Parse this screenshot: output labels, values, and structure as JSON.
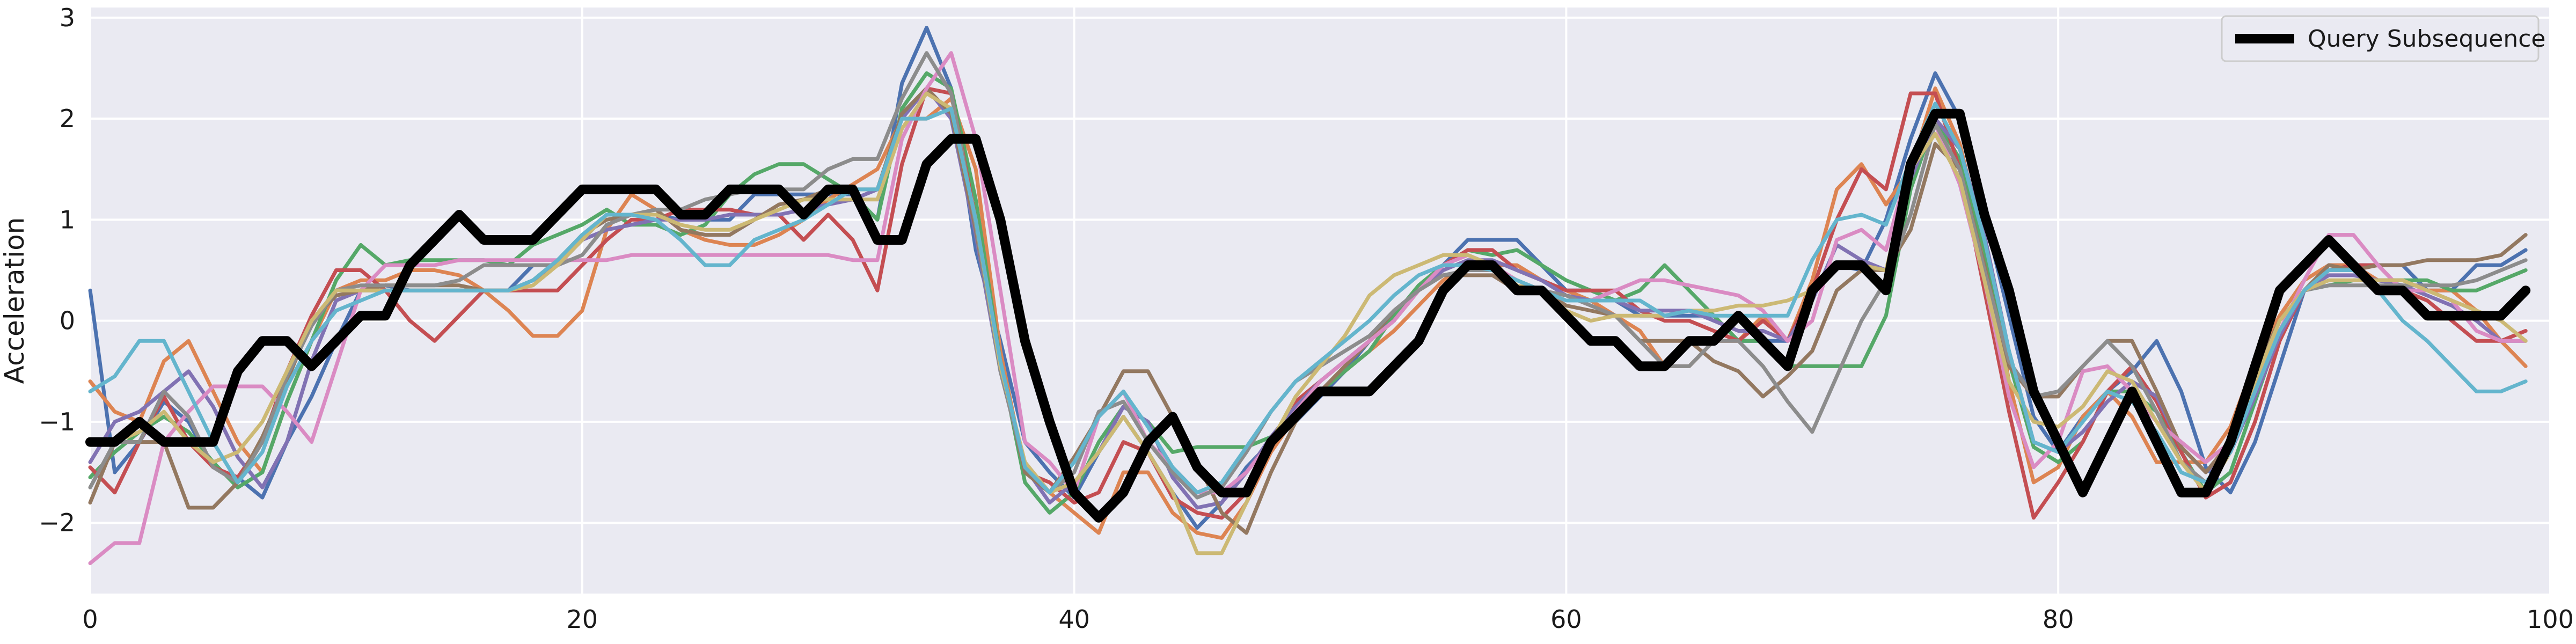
{
  "chart_data": {
    "type": "line",
    "title": "",
    "xlabel": "",
    "ylabel": "Acceleration",
    "xlim": [
      0,
      100
    ],
    "ylim": [
      -2.7,
      3.1
    ],
    "xticks": [
      0,
      20,
      40,
      60,
      80,
      100
    ],
    "yticks": [
      -2,
      -1,
      0,
      1,
      2,
      3
    ],
    "grid": true,
    "background": "#eaeaf2",
    "legend": {
      "placement": "top-right",
      "entries": [
        "Query Subsequence"
      ]
    },
    "query": {
      "name": "Query Subsequence",
      "color": "#000000",
      "x": [
        0,
        1,
        2,
        3,
        4,
        5,
        6,
        7,
        8,
        9,
        10,
        11,
        12,
        13,
        14,
        15,
        16,
        17,
        18,
        19,
        20,
        21,
        22,
        23,
        24,
        25,
        26,
        27,
        28,
        29,
        30,
        31,
        32,
        33,
        34,
        35,
        36,
        37,
        38,
        39,
        40,
        41,
        42,
        43,
        44,
        45,
        46,
        47,
        48,
        49,
        50,
        51,
        52,
        53,
        54,
        55,
        56,
        57,
        58,
        59,
        60,
        61,
        62,
        63,
        64,
        65,
        66,
        67,
        68,
        69,
        70,
        71,
        72,
        73,
        74,
        75,
        76,
        77,
        78,
        79,
        80,
        81,
        82,
        83,
        84,
        85,
        86,
        87,
        88,
        89,
        90,
        91,
        92,
        93,
        94,
        95,
        96,
        97,
        98,
        99
      ],
      "y": [
        -1.2,
        -1.2,
        -1.0,
        -1.2,
        -1.2,
        -1.2,
        -0.5,
        -0.2,
        -0.2,
        -0.45,
        -0.2,
        0.05,
        0.05,
        0.55,
        0.8,
        1.05,
        0.8,
        0.8,
        0.8,
        1.05,
        1.3,
        1.3,
        1.3,
        1.3,
        1.05,
        1.05,
        1.3,
        1.3,
        1.3,
        1.05,
        1.3,
        1.3,
        0.8,
        0.8,
        1.55,
        1.8,
        1.8,
        1.0,
        -0.2,
        -1.0,
        -1.7,
        -1.95,
        -1.7,
        -1.2,
        -0.95,
        -1.45,
        -1.7,
        -1.7,
        -1.2,
        -0.95,
        -0.7,
        -0.7,
        -0.7,
        -0.45,
        -0.2,
        0.3,
        0.55,
        0.55,
        0.3,
        0.3,
        0.05,
        -0.2,
        -0.2,
        -0.45,
        -0.45,
        -0.2,
        -0.2,
        0.05,
        -0.2,
        -0.45,
        0.3,
        0.55,
        0.55,
        0.3,
        1.55,
        2.05,
        2.05,
        1.05,
        0.3,
        -0.7,
        -1.2,
        -1.7,
        -1.2,
        -0.7,
        -1.2,
        -1.7,
        -1.7,
        -1.2,
        -0.45,
        0.3,
        0.55,
        0.8,
        0.55,
        0.3,
        0.3,
        0.05,
        0.05,
        0.05,
        0.05,
        0.3
      ]
    },
    "series": [
      {
        "color": "#4c72b0",
        "y": [
          0.3,
          -1.5,
          -1.2,
          -0.8,
          -1.0,
          -1.45,
          -1.55,
          -1.75,
          -1.2,
          -0.75,
          -0.2,
          0.3,
          0.35,
          0.3,
          0.3,
          0.3,
          0.3,
          0.3,
          0.55,
          0.55,
          0.8,
          1.05,
          1.05,
          1.05,
          1.0,
          1.0,
          1.0,
          1.25,
          1.25,
          1.25,
          1.25,
          1.25,
          1.0,
          2.35,
          2.9,
          2.3,
          0.7,
          -0.2,
          -1.2,
          -1.5,
          -1.75,
          -1.3,
          -0.95,
          -1.3,
          -1.7,
          -2.05,
          -1.8,
          -1.45,
          -1.2,
          -1.0,
          -0.75,
          -0.5,
          -0.2,
          0.05,
          0.3,
          0.55,
          0.8,
          0.8,
          0.8,
          0.55,
          0.3,
          0.3,
          0.2,
          0.05,
          0.05,
          0.05,
          0.05,
          -0.2,
          -0.2,
          -0.2,
          0.3,
          0.55,
          0.5,
          1.0,
          1.8,
          2.45,
          2.0,
          1.05,
          0.05,
          -0.95,
          -1.3,
          -0.95,
          -0.7,
          -0.5,
          -0.2,
          -0.7,
          -1.45,
          -1.7,
          -1.2,
          -0.45,
          0.3,
          0.55,
          0.55,
          0.55,
          0.55,
          0.3,
          0.3,
          0.55,
          0.55,
          0.7
        ]
      },
      {
        "color": "#dd8452",
        "y": [
          -0.6,
          -0.9,
          -1.0,
          -0.4,
          -0.2,
          -0.7,
          -1.2,
          -1.5,
          -0.8,
          -0.2,
          0.3,
          0.4,
          0.4,
          0.5,
          0.5,
          0.45,
          0.3,
          0.1,
          -0.15,
          -0.15,
          0.1,
          0.9,
          1.25,
          1.1,
          0.9,
          0.8,
          0.75,
          0.75,
          0.85,
          1.0,
          1.2,
          1.35,
          1.5,
          2.0,
          2.0,
          2.2,
          1.5,
          -0.3,
          -1.5,
          -1.7,
          -1.9,
          -2.1,
          -1.5,
          -1.5,
          -1.9,
          -2.1,
          -2.15,
          -1.8,
          -1.3,
          -0.95,
          -0.7,
          -0.5,
          -0.3,
          -0.1,
          0.15,
          0.4,
          0.55,
          0.55,
          0.55,
          0.4,
          0.3,
          0.2,
          0.05,
          -0.1,
          -0.45,
          -0.45,
          -0.2,
          -0.2,
          0.05,
          -0.2,
          0.4,
          1.3,
          1.55,
          1.15,
          1.5,
          2.3,
          1.75,
          0.75,
          -0.6,
          -1.6,
          -1.45,
          -0.95,
          -0.7,
          -0.95,
          -1.4,
          -1.4,
          -1.4,
          -1.05,
          -0.4,
          0.05,
          0.4,
          0.55,
          0.55,
          0.4,
          0.4,
          0.3,
          0.3,
          0.1,
          -0.2,
          -0.45
        ]
      },
      {
        "color": "#55a868",
        "y": [
          -1.55,
          -1.3,
          -1.1,
          -0.95,
          -1.1,
          -1.4,
          -1.65,
          -1.5,
          -0.8,
          -0.2,
          0.4,
          0.75,
          0.55,
          0.6,
          0.6,
          0.6,
          0.6,
          0.55,
          0.75,
          0.85,
          0.95,
          1.1,
          0.95,
          0.95,
          0.85,
          0.95,
          1.25,
          1.45,
          1.55,
          1.55,
          1.4,
          1.25,
          1.0,
          2.1,
          2.45,
          2.3,
          1.2,
          -0.4,
          -1.6,
          -1.9,
          -1.7,
          -1.2,
          -0.85,
          -1.0,
          -1.3,
          -1.25,
          -1.25,
          -1.25,
          -1.15,
          -0.95,
          -0.7,
          -0.5,
          -0.3,
          0.05,
          0.35,
          0.55,
          0.7,
          0.65,
          0.7,
          0.55,
          0.4,
          0.3,
          0.2,
          0.3,
          0.55,
          0.3,
          0.05,
          -0.2,
          -0.2,
          -0.45,
          -0.45,
          -0.45,
          -0.45,
          0.05,
          1.3,
          2.0,
          1.6,
          0.7,
          -0.4,
          -1.25,
          -1.4,
          -1.2,
          -0.7,
          -0.7,
          -0.9,
          -1.3,
          -1.7,
          -1.5,
          -0.8,
          -0.1,
          0.3,
          0.35,
          0.4,
          0.4,
          0.4,
          0.4,
          0.3,
          0.3,
          0.4,
          0.5
        ]
      },
      {
        "color": "#c44e52",
        "y": [
          -1.45,
          -1.7,
          -1.2,
          -0.75,
          -1.2,
          -1.45,
          -1.55,
          -1.2,
          -0.5,
          0.05,
          0.5,
          0.5,
          0.3,
          0.0,
          -0.2,
          0.05,
          0.3,
          0.3,
          0.3,
          0.3,
          0.55,
          0.8,
          1.0,
          1.0,
          1.1,
          1.1,
          1.1,
          1.05,
          1.05,
          0.8,
          1.05,
          0.8,
          0.3,
          1.55,
          2.3,
          2.25,
          1.0,
          -0.4,
          -1.5,
          -1.6,
          -1.8,
          -1.7,
          -1.2,
          -1.3,
          -1.75,
          -1.9,
          -1.95,
          -1.7,
          -1.2,
          -0.8,
          -0.6,
          -0.4,
          -0.2,
          0.0,
          0.3,
          0.55,
          0.7,
          0.7,
          0.5,
          0.4,
          0.3,
          0.3,
          0.3,
          0.1,
          0.0,
          0.0,
          -0.1,
          -0.2,
          0.0,
          -0.2,
          0.3,
          1.0,
          1.5,
          1.3,
          2.25,
          2.25,
          1.5,
          0.3,
          -0.9,
          -1.95,
          -1.6,
          -1.2,
          -0.7,
          -0.45,
          -0.8,
          -1.3,
          -1.75,
          -1.6,
          -1.0,
          -0.2,
          0.3,
          0.5,
          0.55,
          0.55,
          0.3,
          0.2,
          0.0,
          -0.2,
          -0.2,
          -0.1
        ]
      },
      {
        "color": "#8172b3",
        "y": [
          -1.4,
          -1.0,
          -0.9,
          -0.7,
          -0.5,
          -0.85,
          -1.35,
          -1.65,
          -1.2,
          -0.4,
          0.2,
          0.3,
          0.3,
          0.3,
          0.3,
          0.3,
          0.3,
          0.3,
          0.4,
          0.55,
          0.8,
          0.9,
          0.95,
          1.0,
          1.0,
          1.0,
          1.05,
          1.05,
          1.05,
          1.1,
          1.15,
          1.2,
          1.3,
          2.0,
          2.3,
          2.0,
          0.85,
          -0.5,
          -1.45,
          -1.8,
          -1.6,
          -1.3,
          -0.85,
          -1.0,
          -1.55,
          -1.85,
          -1.8,
          -1.5,
          -1.15,
          -0.85,
          -0.6,
          -0.4,
          -0.2,
          0.1,
          0.3,
          0.5,
          0.6,
          0.6,
          0.5,
          0.4,
          0.25,
          0.2,
          0.2,
          0.1,
          0.1,
          0.1,
          0.0,
          -0.1,
          -0.1,
          -0.2,
          0.2,
          0.75,
          0.6,
          0.5,
          1.4,
          2.0,
          1.7,
          0.85,
          -0.3,
          -1.2,
          -1.3,
          -1.1,
          -0.8,
          -0.6,
          -0.75,
          -1.25,
          -1.5,
          -1.3,
          -0.75,
          -0.15,
          0.3,
          0.45,
          0.45,
          0.4,
          0.35,
          0.25,
          0.15,
          0.0,
          -0.2,
          -0.2
        ]
      },
      {
        "color": "#937860",
        "y": [
          -1.8,
          -1.2,
          -1.2,
          -1.2,
          -1.85,
          -1.85,
          -1.6,
          -1.15,
          -0.6,
          0.0,
          0.25,
          0.3,
          0.35,
          0.35,
          0.35,
          0.35,
          0.3,
          0.3,
          0.4,
          0.6,
          0.85,
          1.0,
          1.05,
          1.1,
          0.9,
          0.85,
          0.85,
          1.0,
          1.15,
          1.2,
          1.3,
          1.3,
          1.3,
          2.05,
          2.3,
          2.05,
          0.9,
          -0.45,
          -1.5,
          -1.7,
          -1.35,
          -0.95,
          -0.5,
          -0.5,
          -0.95,
          -1.4,
          -1.9,
          -2.1,
          -1.5,
          -1.0,
          -0.7,
          -0.45,
          -0.2,
          0.1,
          0.3,
          0.45,
          0.45,
          0.45,
          0.3,
          0.3,
          0.15,
          0.1,
          0.05,
          -0.2,
          -0.2,
          -0.2,
          -0.4,
          -0.5,
          -0.75,
          -0.55,
          -0.3,
          0.3,
          0.5,
          0.5,
          0.9,
          1.75,
          1.5,
          0.55,
          -0.45,
          -0.75,
          -0.75,
          -0.45,
          -0.2,
          -0.2,
          -0.7,
          -1.25,
          -1.5,
          -1.2,
          -0.5,
          0.0,
          0.3,
          0.55,
          0.5,
          0.55,
          0.55,
          0.6,
          0.6,
          0.6,
          0.65,
          0.85
        ]
      },
      {
        "color": "#da8bc3",
        "y": [
          -2.4,
          -2.2,
          -2.2,
          -1.2,
          -0.9,
          -0.65,
          -0.65,
          -0.65,
          -0.9,
          -1.2,
          -0.45,
          0.3,
          0.55,
          0.55,
          0.55,
          0.6,
          0.6,
          0.6,
          0.6,
          0.6,
          0.6,
          0.6,
          0.65,
          0.65,
          0.65,
          0.65,
          0.65,
          0.65,
          0.65,
          0.65,
          0.65,
          0.6,
          0.6,
          1.8,
          2.3,
          2.65,
          1.8,
          0.3,
          -1.2,
          -1.4,
          -1.7,
          -0.95,
          -0.7,
          -1.2,
          -1.45,
          -1.7,
          -1.7,
          -1.5,
          -1.2,
          -0.9,
          -0.6,
          -0.4,
          -0.2,
          0.0,
          0.3,
          0.55,
          0.65,
          0.55,
          0.4,
          0.3,
          0.2,
          0.2,
          0.3,
          0.4,
          0.4,
          0.35,
          0.3,
          0.25,
          0.1,
          -0.2,
          0.0,
          0.8,
          0.9,
          0.7,
          1.6,
          1.95,
          1.35,
          0.4,
          -0.75,
          -1.45,
          -1.2,
          -0.5,
          -0.45,
          -0.7,
          -1.0,
          -1.2,
          -1.4,
          -1.2,
          -0.7,
          -0.1,
          0.4,
          0.85,
          0.85,
          0.55,
          0.3,
          0.3,
          0.2,
          -0.1,
          -0.2,
          -0.2
        ]
      },
      {
        "color": "#8c8c8c",
        "y": [
          -1.65,
          -1.2,
          -1.2,
          -0.7,
          -0.95,
          -1.45,
          -1.6,
          -1.2,
          -0.55,
          -0.05,
          0.3,
          0.35,
          0.35,
          0.35,
          0.35,
          0.4,
          0.55,
          0.55,
          0.55,
          0.55,
          0.65,
          0.95,
          1.05,
          1.1,
          1.1,
          1.2,
          1.25,
          1.3,
          1.3,
          1.3,
          1.5,
          1.6,
          1.6,
          2.2,
          2.65,
          2.25,
          0.95,
          -0.5,
          -1.45,
          -1.7,
          -1.5,
          -0.9,
          -0.8,
          -1.2,
          -1.5,
          -1.75,
          -1.65,
          -1.3,
          -0.9,
          -0.6,
          -0.45,
          -0.3,
          -0.15,
          0.1,
          0.3,
          0.45,
          0.5,
          0.5,
          0.4,
          0.3,
          0.25,
          0.15,
          0.05,
          -0.2,
          -0.45,
          -0.45,
          -0.2,
          -0.2,
          -0.45,
          -0.8,
          -1.1,
          -0.55,
          0.0,
          0.4,
          1.05,
          1.95,
          1.5,
          0.5,
          -0.4,
          -0.75,
          -0.7,
          -0.45,
          -0.2,
          -0.45,
          -0.9,
          -1.4,
          -1.6,
          -1.3,
          -0.6,
          0.0,
          0.3,
          0.35,
          0.35,
          0.35,
          0.35,
          0.35,
          0.35,
          0.4,
          0.5,
          0.6
        ]
      },
      {
        "color": "#ccb974",
        "y": [
          -1.2,
          -1.2,
          -1.1,
          -0.9,
          -1.2,
          -1.4,
          -1.3,
          -1.0,
          -0.5,
          0.0,
          0.3,
          0.3,
          0.3,
          0.3,
          0.3,
          0.3,
          0.3,
          0.3,
          0.35,
          0.55,
          0.8,
          1.05,
          1.05,
          1.05,
          0.95,
          0.9,
          0.9,
          1.0,
          1.1,
          1.2,
          1.2,
          1.2,
          1.2,
          1.9,
          2.25,
          2.1,
          1.0,
          -0.45,
          -1.4,
          -1.7,
          -1.6,
          -1.3,
          -0.95,
          -1.3,
          -1.7,
          -2.3,
          -2.3,
          -1.8,
          -1.2,
          -0.75,
          -0.45,
          -0.15,
          0.25,
          0.45,
          0.55,
          0.65,
          0.65,
          0.55,
          0.35,
          0.3,
          0.1,
          0.0,
          0.05,
          0.05,
          0.05,
          0.1,
          0.1,
          0.15,
          0.15,
          0.2,
          0.3,
          0.55,
          0.55,
          0.5,
          1.5,
          1.85,
          1.4,
          0.4,
          -0.6,
          -1.0,
          -1.05,
          -0.85,
          -0.5,
          -0.6,
          -1.0,
          -1.4,
          -1.7,
          -1.3,
          -0.6,
          0.0,
          0.3,
          0.4,
          0.4,
          0.4,
          0.4,
          0.3,
          0.2,
          0.1,
          0.0,
          -0.2
        ]
      },
      {
        "color": "#64b5cd",
        "y": [
          -0.7,
          -0.55,
          -0.2,
          -0.2,
          -0.7,
          -1.2,
          -1.6,
          -1.3,
          -0.65,
          -0.2,
          0.1,
          0.2,
          0.3,
          0.3,
          0.3,
          0.3,
          0.3,
          0.3,
          0.4,
          0.6,
          0.85,
          1.05,
          1.05,
          1.0,
          0.8,
          0.55,
          0.55,
          0.8,
          0.9,
          1.0,
          1.15,
          1.3,
          1.3,
          2.0,
          2.0,
          2.1,
          1.0,
          -0.4,
          -1.45,
          -1.7,
          -1.4,
          -0.95,
          -0.7,
          -1.05,
          -1.45,
          -1.7,
          -1.6,
          -1.25,
          -0.9,
          -0.6,
          -0.4,
          -0.2,
          0.0,
          0.25,
          0.45,
          0.55,
          0.55,
          0.5,
          0.4,
          0.3,
          0.2,
          0.2,
          0.2,
          0.2,
          0.05,
          0.1,
          0.05,
          0.05,
          0.05,
          0.05,
          0.6,
          1.0,
          1.05,
          0.95,
          1.6,
          2.15,
          1.7,
          0.8,
          -0.3,
          -1.2,
          -1.3,
          -1.0,
          -0.7,
          -0.8,
          -1.1,
          -1.5,
          -1.6,
          -1.3,
          -0.7,
          -0.1,
          0.3,
          0.5,
          0.5,
          0.3,
          0.0,
          -0.2,
          -0.45,
          -0.7,
          -0.7,
          -0.6
        ]
      }
    ]
  }
}
